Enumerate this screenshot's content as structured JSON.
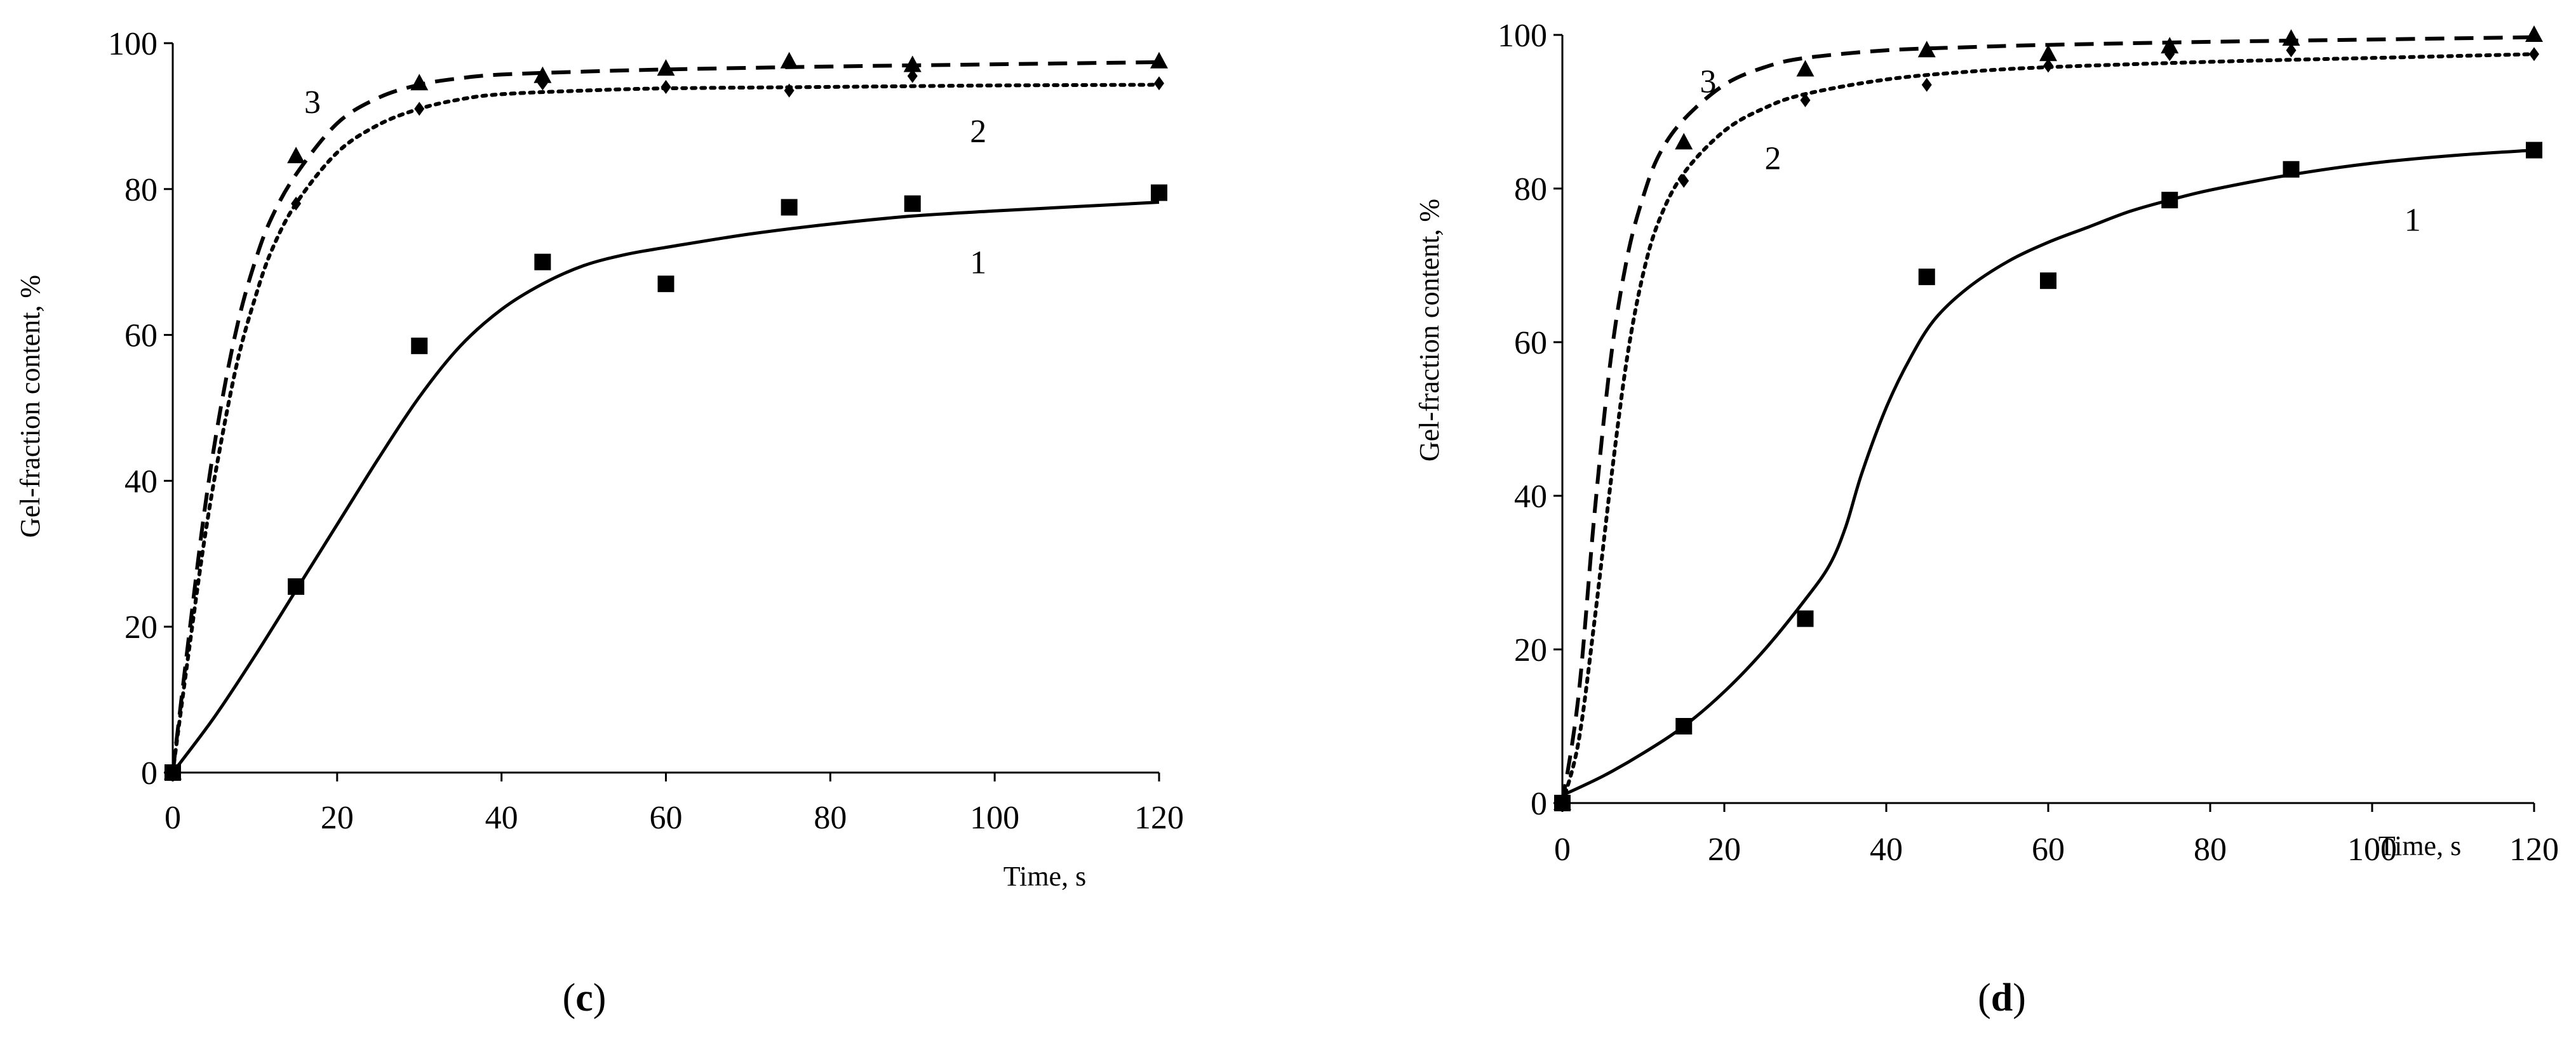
{
  "chart_data": [
    {
      "type": "scatter",
      "panel_label": "c",
      "xlabel": "Time, s",
      "ylabel": "Gel-fraction content, %",
      "xlim": [
        0,
        120
      ],
      "ylim": [
        0,
        100
      ],
      "xticks": [
        0,
        20,
        40,
        60,
        80,
        100,
        120
      ],
      "yticks": [
        0,
        20,
        40,
        60,
        80,
        100
      ],
      "grid": false,
      "series": [
        {
          "name": "1",
          "marker": "square",
          "line": "solid",
          "points": [
            [
              0,
              0
            ],
            [
              15,
              25.5
            ],
            [
              30,
              58.5
            ],
            [
              45,
              70
            ],
            [
              60,
              67
            ],
            [
              75,
              77.5
            ],
            [
              90,
              78
            ],
            [
              120,
              79.5
            ]
          ],
          "fit": [
            [
              0,
              0
            ],
            [
              5,
              7.5
            ],
            [
              10,
              16
            ],
            [
              15,
              25
            ],
            [
              20,
              34
            ],
            [
              25,
              43
            ],
            [
              30,
              51.5
            ],
            [
              35,
              58.5
            ],
            [
              40,
              63.5
            ],
            [
              45,
              67
            ],
            [
              50,
              69.5
            ],
            [
              55,
              71
            ],
            [
              60,
              72
            ],
            [
              70,
              73.8
            ],
            [
              80,
              75.2
            ],
            [
              90,
              76.3
            ],
            [
              100,
              77
            ],
            [
              110,
              77.6
            ],
            [
              120,
              78.2
            ]
          ]
        },
        {
          "name": "2",
          "marker": "diamond",
          "line": "dotted",
          "points": [
            [
              0,
              0
            ],
            [
              15,
              78
            ],
            [
              30,
              91
            ],
            [
              45,
              94.5
            ],
            [
              60,
              94
            ],
            [
              75,
              93.5
            ],
            [
              90,
              95.5
            ],
            [
              120,
              94.5
            ]
          ],
          "fit": [
            [
              0,
              0
            ],
            [
              2,
              17
            ],
            [
              4,
              33
            ],
            [
              6,
              46
            ],
            [
              8,
              57
            ],
            [
              10,
              65
            ],
            [
              12,
              71.5
            ],
            [
              15,
              78
            ],
            [
              20,
              85
            ],
            [
              25,
              88.8
            ],
            [
              30,
              91
            ],
            [
              35,
              92.3
            ],
            [
              40,
              93
            ],
            [
              50,
              93.5
            ],
            [
              60,
              93.8
            ],
            [
              80,
              94
            ],
            [
              100,
              94.2
            ],
            [
              120,
              94.3
            ]
          ]
        },
        {
          "name": "3",
          "marker": "triangle",
          "line": "dashed",
          "points": [
            [
              0,
              0
            ],
            [
              15,
              84.5
            ],
            [
              30,
              94.5
            ],
            [
              45,
              95.5
            ],
            [
              60,
              96.5
            ],
            [
              75,
              97.5
            ],
            [
              90,
              97
            ],
            [
              120,
              97.5
            ]
          ],
          "fit": [
            [
              0,
              0
            ],
            [
              2,
              19
            ],
            [
              4,
              37
            ],
            [
              6,
              51
            ],
            [
              8,
              62
            ],
            [
              10,
              70
            ],
            [
              12,
              76
            ],
            [
              15,
              82
            ],
            [
              20,
              89
            ],
            [
              25,
              92.5
            ],
            [
              30,
              94.3
            ],
            [
              35,
              95.2
            ],
            [
              40,
              95.7
            ],
            [
              50,
              96.1
            ],
            [
              60,
              96.4
            ],
            [
              80,
              96.8
            ],
            [
              100,
              97.1
            ],
            [
              120,
              97.4
            ]
          ]
        }
      ],
      "annotations": [
        {
          "text": "1",
          "x": 98,
          "y": 70
        },
        {
          "text": "2",
          "x": 98,
          "y": 88
        },
        {
          "text": "3",
          "x": 17,
          "y": 92
        }
      ]
    },
    {
      "type": "scatter",
      "panel_label": "d",
      "xlabel": "Time, s",
      "ylabel": "Gel-fraction content, %",
      "xlim": [
        0,
        120
      ],
      "ylim": [
        0,
        100
      ],
      "xticks": [
        0,
        20,
        40,
        60,
        80,
        100,
        120
      ],
      "yticks": [
        0,
        20,
        40,
        60,
        80,
        100
      ],
      "grid": false,
      "series": [
        {
          "name": "1",
          "marker": "square",
          "line": "solid",
          "points": [
            [
              0,
              0
            ],
            [
              15,
              10
            ],
            [
              30,
              24
            ],
            [
              45,
              68.5
            ],
            [
              60,
              68
            ],
            [
              75,
              78.5
            ],
            [
              90,
              82.5
            ],
            [
              120,
              85
            ]
          ],
          "fit": [
            [
              0,
              1
            ],
            [
              5,
              3.5
            ],
            [
              10,
              6.5
            ],
            [
              15,
              10
            ],
            [
              20,
              14.5
            ],
            [
              25,
              20
            ],
            [
              30,
              26.5
            ],
            [
              33,
              31
            ],
            [
              35,
              36
            ],
            [
              37,
              43
            ],
            [
              40,
              51.5
            ],
            [
              43,
              58
            ],
            [
              46,
              63
            ],
            [
              50,
              67
            ],
            [
              55,
              70.5
            ],
            [
              60,
              73
            ],
            [
              65,
              75
            ],
            [
              70,
              77
            ],
            [
              75,
              78.5
            ],
            [
              80,
              79.8
            ],
            [
              90,
              81.8
            ],
            [
              100,
              83.3
            ],
            [
              110,
              84.3
            ],
            [
              120,
              85
            ]
          ]
        },
        {
          "name": "2",
          "marker": "diamond",
          "line": "dotted",
          "points": [
            [
              0,
              0
            ],
            [
              15,
              81
            ],
            [
              30,
              91.5
            ],
            [
              45,
              93.5
            ],
            [
              60,
              96
            ],
            [
              75,
              97.5
            ],
            [
              90,
              98
            ],
            [
              120,
              97.5
            ]
          ],
          "fit": [
            [
              0,
              0
            ],
            [
              2,
              8
            ],
            [
              4,
              24
            ],
            [
              6,
              42
            ],
            [
              8,
              58
            ],
            [
              10,
              69
            ],
            [
              12,
              76
            ],
            [
              15,
              82
            ],
            [
              20,
              87.5
            ],
            [
              25,
              90.5
            ],
            [
              30,
              92.3
            ],
            [
              40,
              94.2
            ],
            [
              50,
              95.2
            ],
            [
              60,
              95.8
            ],
            [
              80,
              96.5
            ],
            [
              100,
              97
            ],
            [
              120,
              97.5
            ]
          ]
        },
        {
          "name": "3",
          "marker": "triangle",
          "line": "dashed",
          "points": [
            [
              0,
              0
            ],
            [
              15,
              86
            ],
            [
              30,
              95.5
            ],
            [
              45,
              98
            ],
            [
              60,
              97.5
            ],
            [
              75,
              98.5
            ],
            [
              90,
              99.5
            ],
            [
              120,
              100
            ]
          ],
          "fit": [
            [
              0,
              0
            ],
            [
              2,
              14
            ],
            [
              4,
              38
            ],
            [
              6,
              58
            ],
            [
              8,
              71
            ],
            [
              10,
              79
            ],
            [
              12,
              84.5
            ],
            [
              15,
              89
            ],
            [
              20,
              93.5
            ],
            [
              25,
              95.8
            ],
            [
              30,
              97
            ],
            [
              40,
              98
            ],
            [
              50,
              98.4
            ],
            [
              60,
              98.7
            ],
            [
              80,
              99.1
            ],
            [
              100,
              99.4
            ],
            [
              120,
              99.7
            ]
          ]
        }
      ],
      "annotations": [
        {
          "text": "1",
          "x": 105,
          "y": 76
        },
        {
          "text": "2",
          "x": 26,
          "y": 84
        },
        {
          "text": "3",
          "x": 18,
          "y": 94
        }
      ]
    }
  ]
}
